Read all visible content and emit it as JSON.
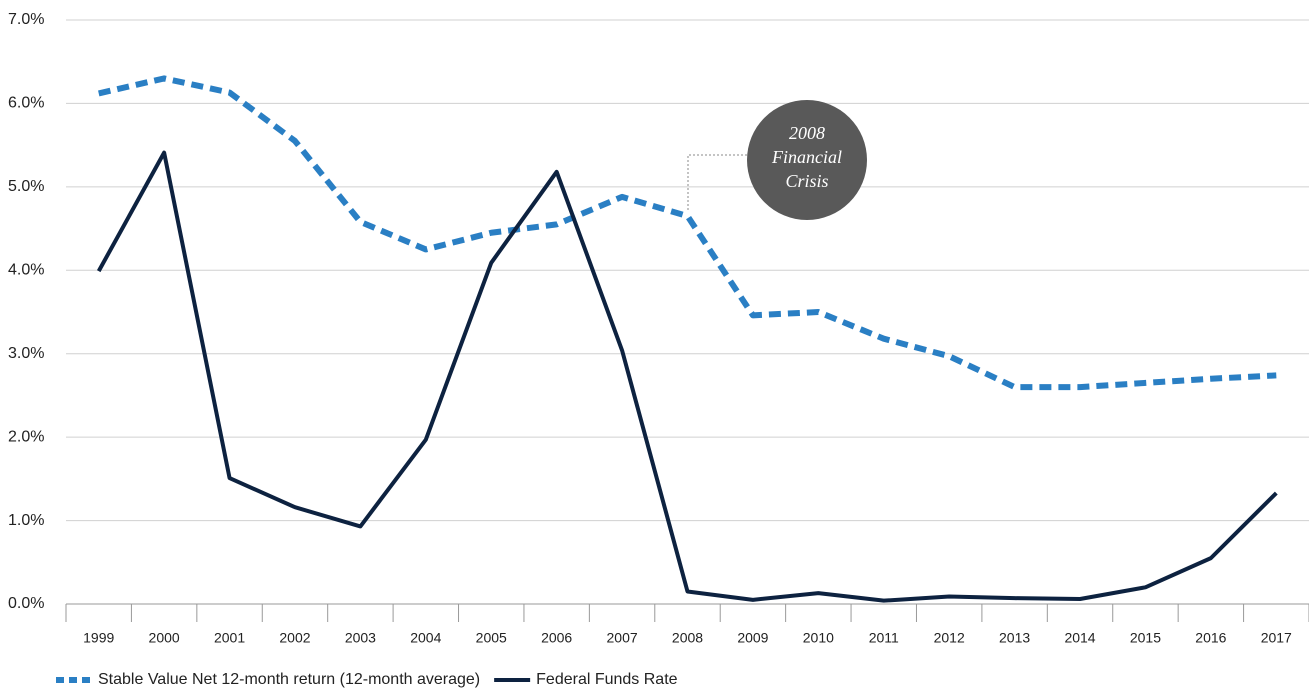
{
  "chart_data": {
    "type": "line",
    "categories": [
      "1999",
      "2000",
      "2001",
      "2002",
      "2003",
      "2004",
      "2005",
      "2006",
      "2007",
      "2008",
      "2009",
      "2010",
      "2011",
      "2012",
      "2013",
      "2014",
      "2015",
      "2016",
      "2017"
    ],
    "series": [
      {
        "name": "Stable Value Net 12-month return (12-month average)",
        "color": "#2a7fc4",
        "style": "dashed",
        "values": [
          6.12,
          6.3,
          6.13,
          5.55,
          4.58,
          4.25,
          4.45,
          4.55,
          4.88,
          4.65,
          3.46,
          3.5,
          3.18,
          2.97,
          2.6,
          2.6,
          2.65,
          2.7,
          2.74
        ]
      },
      {
        "name": "Federal Funds Rate",
        "color": "#0d2240",
        "style": "solid",
        "values": [
          3.99,
          5.41,
          1.51,
          1.16,
          0.93,
          1.97,
          4.09,
          5.18,
          3.04,
          0.15,
          0.05,
          0.13,
          0.04,
          0.09,
          0.07,
          0.06,
          0.2,
          0.55,
          1.33
        ]
      }
    ],
    "ylim": [
      0,
      7
    ],
    "yticks": [
      {
        "value": 0,
        "label": "0.0%"
      },
      {
        "value": 1,
        "label": "1.0%"
      },
      {
        "value": 2,
        "label": "2.0%"
      },
      {
        "value": 3,
        "label": "3.0%"
      },
      {
        "value": 4,
        "label": "4.0%"
      },
      {
        "value": 5,
        "label": "5.0%"
      },
      {
        "value": 6,
        "label": "6.0%"
      },
      {
        "value": 7,
        "label": "7.0%"
      }
    ],
    "grid": true,
    "legend": "bottom",
    "annotation": [
      "2008",
      "Financial",
      "Crisis"
    ]
  }
}
